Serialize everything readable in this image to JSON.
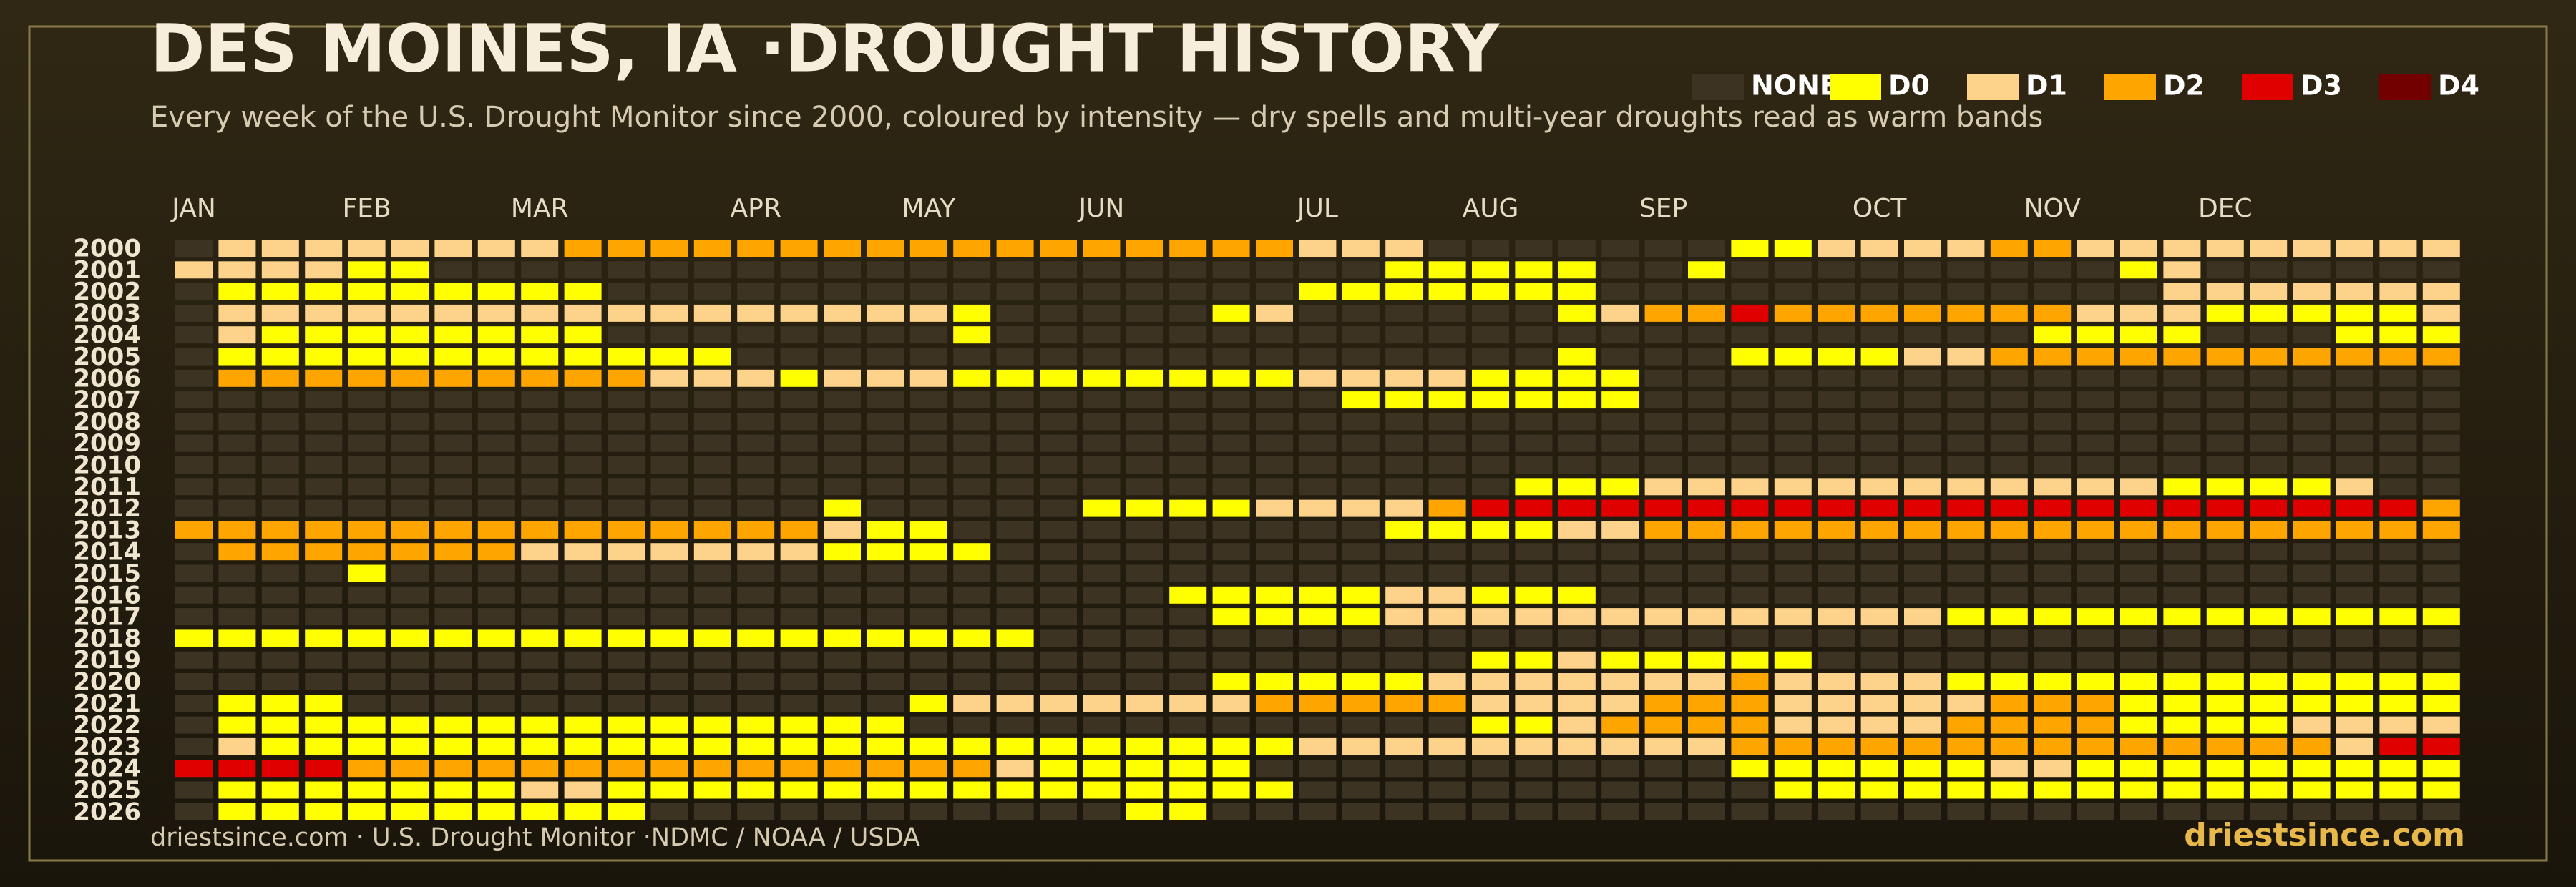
{
  "chart_data": {
    "type": "heatmap",
    "title": "DES MOINES, IA ·DROUGHT HISTORY",
    "subtitle": "Every week of the U.S. Drought Monitor since 2000, coloured by intensity — dry spells and multi-year droughts read as warm bands",
    "categories": [
      "JAN",
      null,
      null,
      null,
      "FEB",
      null,
      null,
      null,
      "MAR",
      null,
      null,
      null,
      null,
      "APR",
      null,
      null,
      null,
      "MAY",
      null,
      null,
      null,
      "JUN",
      null,
      null,
      null,
      null,
      "JUL",
      null,
      null,
      null,
      "AUG",
      null,
      null,
      null,
      "SEP",
      null,
      null,
      null,
      null,
      "OCT",
      null,
      null,
      null,
      "NOV",
      null,
      null,
      null,
      "DEC",
      null,
      null,
      null,
      null,
      null
    ],
    "rows": [
      2000,
      2001,
      2002,
      2003,
      2004,
      2005,
      2006,
      2007,
      2008,
      2009,
      2010,
      2011,
      2012,
      2013,
      2014,
      2015,
      2016,
      2017,
      2018,
      2019,
      2020,
      2021,
      2022,
      2023,
      2024,
      2025,
      2026
    ],
    "levels": [
      {
        "name": "NONE",
        "color": "#3d3322"
      },
      {
        "name": "D0",
        "color": "#ffff00"
      },
      {
        "name": "D1",
        "color": "#fdd28a"
      },
      {
        "name": "D2",
        "color": "#ffa500"
      },
      {
        "name": "D3",
        "color": "#e00000"
      },
      {
        "name": "D4",
        "color": "#730000"
      }
    ],
    "values": [
      [
        0,
        2,
        2,
        2,
        2,
        2,
        2,
        2,
        2,
        3,
        3,
        3,
        3,
        3,
        3,
        3,
        3,
        3,
        3,
        3,
        3,
        3,
        3,
        3,
        3,
        3,
        2,
        2,
        2,
        0,
        0,
        0,
        0,
        0,
        0,
        0,
        1,
        1,
        2,
        2,
        2,
        2,
        3,
        3,
        2,
        2,
        2,
        2,
        2,
        2,
        2,
        2,
        2
      ],
      [
        2,
        2,
        2,
        2,
        1,
        1,
        0,
        0,
        0,
        0,
        0,
        0,
        0,
        0,
        0,
        0,
        0,
        0,
        0,
        0,
        0,
        0,
        0,
        0,
        0,
        0,
        0,
        0,
        1,
        1,
        1,
        1,
        1,
        0,
        0,
        1,
        0,
        0,
        0,
        0,
        0,
        0,
        0,
        0,
        0,
        1,
        2,
        0,
        0,
        0,
        0,
        0,
        0
      ],
      [
        0,
        1,
        1,
        1,
        1,
        1,
        1,
        1,
        1,
        1,
        0,
        0,
        0,
        0,
        0,
        0,
        0,
        0,
        0,
        0,
        0,
        0,
        0,
        0,
        0,
        0,
        1,
        1,
        1,
        1,
        1,
        1,
        1,
        0,
        0,
        0,
        0,
        0,
        0,
        0,
        0,
        0,
        0,
        0,
        0,
        0,
        2,
        2,
        2,
        2,
        2,
        2,
        2
      ],
      [
        0,
        2,
        2,
        2,
        2,
        2,
        2,
        2,
        2,
        2,
        2,
        2,
        2,
        2,
        2,
        2,
        2,
        2,
        1,
        0,
        0,
        0,
        0,
        0,
        1,
        2,
        0,
        0,
        0,
        0,
        0,
        0,
        1,
        2,
        3,
        3,
        4,
        3,
        3,
        3,
        3,
        3,
        3,
        3,
        2,
        2,
        2,
        1,
        1,
        1,
        1,
        1,
        2
      ],
      [
        0,
        2,
        1,
        1,
        1,
        1,
        1,
        1,
        1,
        1,
        0,
        0,
        0,
        0,
        0,
        0,
        0,
        0,
        1,
        0,
        0,
        0,
        0,
        0,
        0,
        0,
        0,
        0,
        0,
        0,
        0,
        0,
        0,
        0,
        0,
        0,
        0,
        0,
        0,
        0,
        0,
        0,
        0,
        1,
        1,
        1,
        1,
        0,
        0,
        0,
        1,
        1,
        1
      ],
      [
        0,
        1,
        1,
        1,
        1,
        1,
        1,
        1,
        1,
        1,
        1,
        1,
        1,
        0,
        0,
        0,
        0,
        0,
        0,
        0,
        0,
        0,
        0,
        0,
        0,
        0,
        0,
        0,
        0,
        0,
        0,
        0,
        1,
        0,
        0,
        0,
        1,
        1,
        1,
        1,
        2,
        2,
        3,
        3,
        3,
        3,
        3,
        3,
        3,
        3,
        3,
        3,
        3
      ],
      [
        0,
        3,
        3,
        3,
        3,
        3,
        3,
        3,
        3,
        3,
        3,
        2,
        2,
        2,
        1,
        2,
        2,
        2,
        1,
        1,
        1,
        1,
        1,
        1,
        1,
        1,
        2,
        2,
        2,
        2,
        1,
        1,
        1,
        1,
        0,
        0,
        0,
        0,
        0,
        0,
        0,
        0,
        0,
        0,
        0,
        0,
        0,
        0,
        0,
        0,
        0,
        0,
        0
      ],
      [
        0,
        0,
        0,
        0,
        0,
        0,
        0,
        0,
        0,
        0,
        0,
        0,
        0,
        0,
        0,
        0,
        0,
        0,
        0,
        0,
        0,
        0,
        0,
        0,
        0,
        0,
        0,
        1,
        1,
        1,
        1,
        1,
        1,
        1,
        0,
        0,
        0,
        0,
        0,
        0,
        0,
        0,
        0,
        0,
        0,
        0,
        0,
        0,
        0,
        0,
        0,
        0,
        0
      ],
      [
        0,
        0,
        0,
        0,
        0,
        0,
        0,
        0,
        0,
        0,
        0,
        0,
        0,
        0,
        0,
        0,
        0,
        0,
        0,
        0,
        0,
        0,
        0,
        0,
        0,
        0,
        0,
        0,
        0,
        0,
        0,
        0,
        0,
        0,
        0,
        0,
        0,
        0,
        0,
        0,
        0,
        0,
        0,
        0,
        0,
        0,
        0,
        0,
        0,
        0,
        0,
        0,
        0
      ],
      [
        0,
        0,
        0,
        0,
        0,
        0,
        0,
        0,
        0,
        0,
        0,
        0,
        0,
        0,
        0,
        0,
        0,
        0,
        0,
        0,
        0,
        0,
        0,
        0,
        0,
        0,
        0,
        0,
        0,
        0,
        0,
        0,
        0,
        0,
        0,
        0,
        0,
        0,
        0,
        0,
        0,
        0,
        0,
        0,
        0,
        0,
        0,
        0,
        0,
        0,
        0,
        0,
        0
      ],
      [
        0,
        0,
        0,
        0,
        0,
        0,
        0,
        0,
        0,
        0,
        0,
        0,
        0,
        0,
        0,
        0,
        0,
        0,
        0,
        0,
        0,
        0,
        0,
        0,
        0,
        0,
        0,
        0,
        0,
        0,
        0,
        0,
        0,
        0,
        0,
        0,
        0,
        0,
        0,
        0,
        0,
        0,
        0,
        0,
        0,
        0,
        0,
        0,
        0,
        0,
        0,
        0,
        0
      ],
      [
        0,
        0,
        0,
        0,
        0,
        0,
        0,
        0,
        0,
        0,
        0,
        0,
        0,
        0,
        0,
        0,
        0,
        0,
        0,
        0,
        0,
        0,
        0,
        0,
        0,
        0,
        0,
        0,
        0,
        0,
        0,
        1,
        1,
        1,
        2,
        2,
        2,
        2,
        2,
        2,
        2,
        2,
        2,
        2,
        2,
        2,
        1,
        1,
        1,
        1,
        2,
        0,
        0
      ],
      [
        0,
        0,
        0,
        0,
        0,
        0,
        0,
        0,
        0,
        0,
        0,
        0,
        0,
        0,
        0,
        1,
        0,
        0,
        0,
        0,
        0,
        1,
        1,
        1,
        1,
        2,
        2,
        2,
        2,
        3,
        4,
        4,
        4,
        4,
        4,
        4,
        4,
        4,
        4,
        4,
        4,
        4,
        4,
        4,
        4,
        4,
        4,
        4,
        4,
        4,
        4,
        4,
        3
      ],
      [
        3,
        3,
        3,
        3,
        3,
        3,
        3,
        3,
        3,
        3,
        3,
        3,
        3,
        3,
        3,
        2,
        1,
        1,
        0,
        0,
        0,
        0,
        0,
        0,
        0,
        0,
        0,
        0,
        1,
        1,
        1,
        1,
        2,
        2,
        3,
        3,
        3,
        3,
        3,
        3,
        3,
        3,
        3,
        3,
        3,
        3,
        3,
        3,
        3,
        3,
        3,
        3,
        3
      ],
      [
        0,
        3,
        3,
        3,
        3,
        3,
        3,
        3,
        2,
        2,
        2,
        2,
        2,
        2,
        2,
        1,
        1,
        1,
        1,
        0,
        0,
        0,
        0,
        0,
        0,
        0,
        0,
        0,
        0,
        0,
        0,
        0,
        0,
        0,
        0,
        0,
        0,
        0,
        0,
        0,
        0,
        0,
        0,
        0,
        0,
        0,
        0,
        0,
        0,
        0,
        0,
        0,
        0
      ],
      [
        0,
        0,
        0,
        0,
        1,
        0,
        0,
        0,
        0,
        0,
        0,
        0,
        0,
        0,
        0,
        0,
        0,
        0,
        0,
        0,
        0,
        0,
        0,
        0,
        0,
        0,
        0,
        0,
        0,
        0,
        0,
        0,
        0,
        0,
        0,
        0,
        0,
        0,
        0,
        0,
        0,
        0,
        0,
        0,
        0,
        0,
        0,
        0,
        0,
        0,
        0,
        0,
        0
      ],
      [
        0,
        0,
        0,
        0,
        0,
        0,
        0,
        0,
        0,
        0,
        0,
        0,
        0,
        0,
        0,
        0,
        0,
        0,
        0,
        0,
        0,
        0,
        0,
        1,
        1,
        1,
        1,
        1,
        2,
        2,
        1,
        1,
        1,
        0,
        0,
        0,
        0,
        0,
        0,
        0,
        0,
        0,
        0,
        0,
        0,
        0,
        0,
        0,
        0,
        0,
        0,
        0,
        0
      ],
      [
        0,
        0,
        0,
        0,
        0,
        0,
        0,
        0,
        0,
        0,
        0,
        0,
        0,
        0,
        0,
        0,
        0,
        0,
        0,
        0,
        0,
        0,
        0,
        0,
        1,
        1,
        1,
        1,
        2,
        2,
        2,
        2,
        2,
        2,
        2,
        2,
        2,
        2,
        2,
        2,
        2,
        1,
        1,
        1,
        1,
        1,
        1,
        1,
        1,
        1,
        1,
        1,
        1
      ],
      [
        1,
        1,
        1,
        1,
        1,
        1,
        1,
        1,
        1,
        1,
        1,
        1,
        1,
        1,
        1,
        1,
        1,
        1,
        1,
        1,
        0,
        0,
        0,
        0,
        0,
        0,
        0,
        0,
        0,
        0,
        0,
        0,
        0,
        0,
        0,
        0,
        0,
        0,
        0,
        0,
        0,
        0,
        0,
        0,
        0,
        0,
        0,
        0,
        0,
        0,
        0,
        0,
        0
      ],
      [
        0,
        0,
        0,
        0,
        0,
        0,
        0,
        0,
        0,
        0,
        0,
        0,
        0,
        0,
        0,
        0,
        0,
        0,
        0,
        0,
        0,
        0,
        0,
        0,
        0,
        0,
        0,
        0,
        0,
        0,
        1,
        1,
        2,
        1,
        1,
        1,
        1,
        1,
        0,
        0,
        0,
        0,
        0,
        0,
        0,
        0,
        0,
        0,
        0,
        0,
        0,
        0,
        0
      ],
      [
        0,
        0,
        0,
        0,
        0,
        0,
        0,
        0,
        0,
        0,
        0,
        0,
        0,
        0,
        0,
        0,
        0,
        0,
        0,
        0,
        0,
        0,
        0,
        0,
        1,
        1,
        1,
        1,
        1,
        2,
        2,
        2,
        2,
        2,
        2,
        2,
        3,
        2,
        2,
        2,
        2,
        1,
        1,
        1,
        1,
        1,
        1,
        1,
        1,
        1,
        1,
        1,
        1
      ],
      [
        0,
        1,
        1,
        1,
        0,
        0,
        0,
        0,
        0,
        0,
        0,
        0,
        0,
        0,
        0,
        0,
        0,
        1,
        2,
        2,
        2,
        2,
        2,
        2,
        2,
        3,
        3,
        3,
        3,
        3,
        2,
        2,
        2,
        2,
        3,
        3,
        3,
        2,
        2,
        2,
        2,
        2,
        3,
        3,
        3,
        1,
        1,
        1,
        1,
        1,
        1,
        1,
        1
      ],
      [
        0,
        1,
        1,
        1,
        1,
        1,
        1,
        1,
        1,
        1,
        1,
        1,
        1,
        1,
        1,
        1,
        1,
        0,
        0,
        0,
        0,
        0,
        0,
        0,
        0,
        0,
        0,
        0,
        0,
        0,
        1,
        1,
        2,
        3,
        3,
        3,
        3,
        2,
        2,
        2,
        2,
        3,
        3,
        3,
        3,
        1,
        1,
        1,
        1,
        2,
        2,
        2,
        2
      ],
      [
        0,
        2,
        1,
        1,
        1,
        1,
        1,
        1,
        1,
        1,
        1,
        1,
        1,
        1,
        1,
        1,
        1,
        1,
        1,
        1,
        1,
        1,
        1,
        1,
        1,
        1,
        2,
        2,
        2,
        2,
        2,
        2,
        2,
        2,
        2,
        2,
        3,
        3,
        3,
        3,
        3,
        3,
        3,
        3,
        3,
        3,
        3,
        3,
        3,
        3,
        2,
        4,
        4
      ],
      [
        4,
        4,
        4,
        4,
        3,
        3,
        3,
        3,
        3,
        3,
        3,
        3,
        3,
        3,
        3,
        3,
        3,
        3,
        3,
        2,
        1,
        1,
        1,
        1,
        1,
        0,
        0,
        0,
        0,
        0,
        0,
        0,
        0,
        0,
        0,
        0,
        1,
        1,
        1,
        1,
        1,
        1,
        2,
        2,
        1,
        1,
        1,
        1,
        1,
        1,
        1,
        1,
        1
      ],
      [
        0,
        1,
        1,
        1,
        1,
        1,
        1,
        1,
        2,
        2,
        1,
        1,
        1,
        1,
        1,
        1,
        1,
        1,
        1,
        1,
        1,
        1,
        1,
        1,
        1,
        1,
        0,
        0,
        0,
        0,
        0,
        0,
        0,
        0,
        0,
        0,
        0,
        1,
        1,
        1,
        1,
        1,
        1,
        1,
        1,
        1,
        1,
        1,
        1,
        1,
        1,
        1,
        1
      ],
      [
        0,
        1,
        1,
        1,
        1,
        1,
        1,
        1,
        1,
        1,
        1,
        0,
        0,
        0,
        0,
        0,
        0,
        0,
        0,
        0,
        0,
        0,
        1,
        1,
        0,
        0,
        0,
        0,
        0,
        0,
        0,
        0,
        0,
        0,
        0,
        0,
        0,
        0,
        0,
        0,
        0,
        0,
        0,
        0,
        0,
        0,
        0,
        0,
        0,
        0,
        0,
        0,
        0
      ]
    ],
    "source": "driestsince.com · U.S. Drought Monitor ·NDMC / NOAA / USDA",
    "credit": "driestsince.com"
  }
}
